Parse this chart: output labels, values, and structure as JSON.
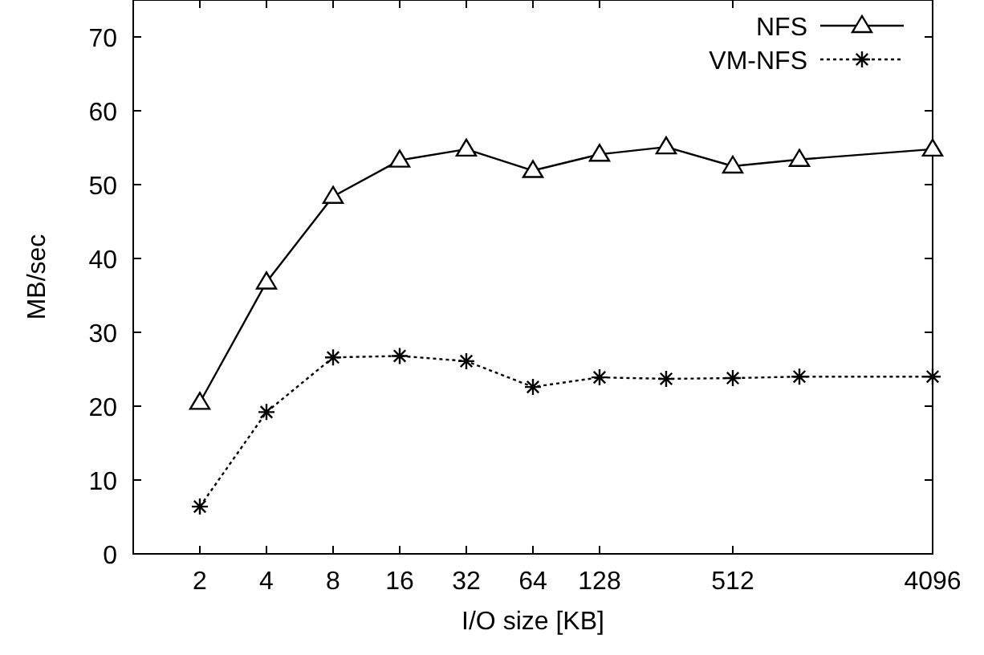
{
  "chart_data": {
    "type": "line",
    "xlabel": "I/O size [KB]",
    "ylabel": "MB/sec",
    "log": "x",
    "xlim": [
      1,
      4096
    ],
    "xticks": [
      2,
      4,
      8,
      16,
      32,
      64,
      128,
      512,
      4096
    ],
    "ylim": [
      0,
      75
    ],
    "yticks": [
      0,
      10,
      20,
      30,
      40,
      50,
      60,
      70
    ],
    "grid": false,
    "legend": "top right",
    "x": [
      2,
      4,
      8,
      16,
      32,
      64,
      128,
      256,
      512,
      1024,
      4096
    ],
    "series": [
      {
        "name": "NFS",
        "color": "#000000",
        "marker": "triangle",
        "line_style": "solid",
        "values": [
          20.5,
          36.8,
          48.4,
          53.3,
          54.8,
          51.9,
          54.1,
          55.1,
          52.5,
          53.4,
          54.8
        ]
      },
      {
        "name": "VM-NFS",
        "color": "#000000",
        "marker": "cross",
        "line_style": "dotted",
        "values": [
          6.4,
          19.2,
          26.6,
          26.8,
          26.1,
          22.6,
          23.9,
          23.7,
          23.8,
          24.0,
          24.0
        ]
      }
    ]
  }
}
